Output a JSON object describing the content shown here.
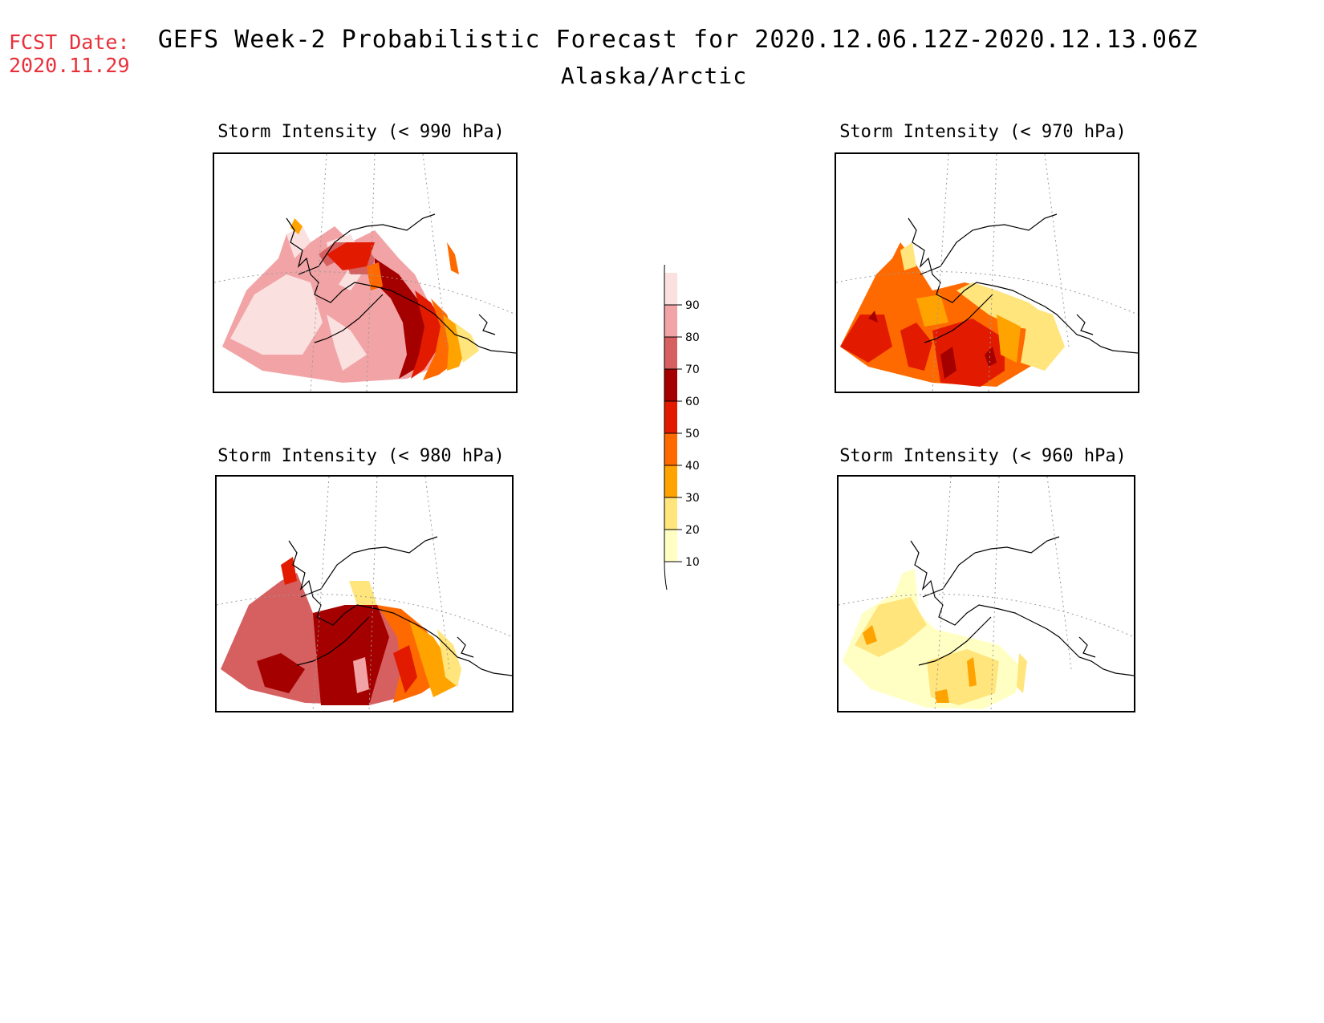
{
  "header": {
    "fcst_label": "FCST Date:",
    "fcst_date": "2020.11.29",
    "title": "GEFS Week-2 Probabilistic Forecast for 2020.12.06.12Z-2020.12.13.06Z",
    "subtitle": "Alaska/Arctic"
  },
  "panels": [
    {
      "id": "p990",
      "title": "Storm Intensity (< 990 hPa)"
    },
    {
      "id": "p970",
      "title": "Storm Intensity (< 970 hPa)"
    },
    {
      "id": "p980",
      "title": "Storm Intensity (< 980 hPa)"
    },
    {
      "id": "p960",
      "title": "Storm Intensity (< 960 hPa)"
    }
  ],
  "legend": {
    "levels": [
      "10",
      "20",
      "30",
      "40",
      "50",
      "60",
      "70",
      "80",
      "90"
    ],
    "colors": [
      "#ffffc4",
      "#ffe57c",
      "#ffa300",
      "#ff6a00",
      "#e21b00",
      "#a50000",
      "#d65f60",
      "#f2a3a5",
      "#fbe0e0"
    ]
  }
}
